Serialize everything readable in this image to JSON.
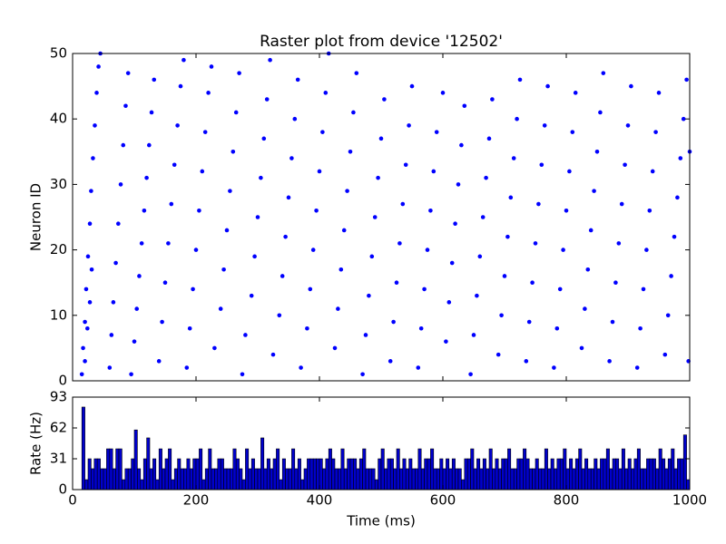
{
  "chart_data": [
    {
      "type": "scatter",
      "title": "Raster plot from device '12502'",
      "ylabel": "Neuron ID",
      "color": "#0000ff",
      "xlim": [
        0,
        1000
      ],
      "ylim": [
        0,
        50
      ],
      "yticks": [
        0,
        10,
        20,
        30,
        40,
        50
      ],
      "x": [
        15,
        17,
        20,
        22,
        25,
        28,
        30,
        33,
        36,
        39,
        42,
        45,
        20,
        24,
        28,
        31,
        60,
        63,
        66,
        70,
        74,
        78,
        82,
        86,
        90,
        95,
        100,
        104,
        108,
        112,
        116,
        120,
        124,
        128,
        132,
        140,
        145,
        150,
        155,
        160,
        165,
        170,
        175,
        180,
        185,
        190,
        195,
        200,
        205,
        210,
        215,
        220,
        225,
        230,
        240,
        245,
        250,
        255,
        260,
        265,
        270,
        275,
        280,
        290,
        295,
        300,
        305,
        310,
        315,
        320,
        325,
        335,
        340,
        345,
        350,
        355,
        360,
        365,
        370,
        380,
        385,
        390,
        395,
        400,
        405,
        410,
        415,
        425,
        430,
        435,
        440,
        445,
        450,
        455,
        460,
        470,
        475,
        480,
        485,
        490,
        495,
        500,
        505,
        515,
        520,
        525,
        530,
        535,
        540,
        545,
        550,
        560,
        565,
        570,
        575,
        580,
        585,
        590,
        600,
        605,
        610,
        615,
        620,
        625,
        630,
        635,
        645,
        650,
        655,
        660,
        665,
        670,
        675,
        680,
        690,
        695,
        700,
        705,
        710,
        715,
        720,
        725,
        735,
        740,
        745,
        750,
        755,
        760,
        765,
        770,
        780,
        785,
        790,
        795,
        800,
        805,
        810,
        815,
        825,
        830,
        835,
        840,
        845,
        850,
        855,
        860,
        870,
        875,
        880,
        885,
        890,
        895,
        900,
        905,
        915,
        920,
        925,
        930,
        935,
        940,
        945,
        950,
        960,
        965,
        970,
        975,
        980,
        985,
        990,
        995,
        998,
        1000
      ],
      "y": [
        1,
        5,
        9,
        14,
        19,
        24,
        29,
        34,
        39,
        44,
        48,
        50,
        3,
        8,
        12,
        17,
        2,
        7,
        12,
        18,
        24,
        30,
        36,
        42,
        47,
        1,
        6,
        11,
        16,
        21,
        26,
        31,
        36,
        41,
        46,
        3,
        9,
        15,
        21,
        27,
        33,
        39,
        45,
        49,
        2,
        8,
        14,
        20,
        26,
        32,
        38,
        44,
        48,
        5,
        11,
        17,
        23,
        29,
        35,
        41,
        47,
        1,
        7,
        13,
        19,
        25,
        31,
        37,
        43,
        49,
        4,
        10,
        16,
        22,
        28,
        34,
        40,
        46,
        2,
        8,
        14,
        20,
        26,
        32,
        38,
        44,
        50,
        5,
        11,
        17,
        23,
        29,
        35,
        41,
        47,
        1,
        7,
        13,
        19,
        25,
        31,
        37,
        43,
        3,
        9,
        15,
        21,
        27,
        33,
        39,
        45,
        2,
        8,
        14,
        20,
        26,
        32,
        38,
        44,
        6,
        12,
        18,
        24,
        30,
        36,
        42,
        1,
        7,
        13,
        19,
        25,
        31,
        37,
        43,
        4,
        10,
        16,
        22,
        28,
        34,
        40,
        46,
        3,
        9,
        15,
        21,
        27,
        33,
        39,
        45,
        2,
        8,
        14,
        20,
        26,
        32,
        38,
        44,
        5,
        11,
        17,
        23,
        29,
        35,
        41,
        47,
        3,
        9,
        15,
        21,
        27,
        33,
        39,
        45,
        2,
        8,
        14,
        20,
        26,
        32,
        38,
        44,
        4,
        10,
        16,
        22,
        28,
        34,
        40,
        46,
        3,
        35
      ]
    },
    {
      "type": "histogram",
      "xlabel": "Time (ms)",
      "ylabel": "Rate (Hz)",
      "color": "#0000cc",
      "xlim": [
        0,
        1000
      ],
      "xticks": [
        0,
        200,
        400,
        600,
        800,
        1000
      ],
      "ylim": [
        0,
        93
      ],
      "yticks": [
        0,
        31,
        62,
        93
      ],
      "bins": [
        0,
        5,
        10,
        15,
        20,
        25,
        30,
        35,
        40,
        45,
        50,
        55,
        60,
        65,
        70,
        75,
        80,
        85,
        90,
        95,
        100,
        105,
        110,
        115,
        120,
        125,
        130,
        135,
        140,
        145,
        150,
        155,
        160,
        165,
        170,
        175,
        180,
        185,
        190,
        195,
        200,
        205,
        210,
        215,
        220,
        225,
        230,
        235,
        240,
        245,
        250,
        255,
        260,
        265,
        270,
        275,
        280,
        285,
        290,
        295,
        300,
        305,
        310,
        315,
        320,
        325,
        330,
        335,
        340,
        345,
        350,
        355,
        360,
        365,
        370,
        375,
        380,
        385,
        390,
        395,
        400,
        405,
        410,
        415,
        420,
        425,
        430,
        435,
        440,
        445,
        450,
        455,
        460,
        465,
        470,
        475,
        480,
        485,
        490,
        495,
        500,
        505,
        510,
        515,
        520,
        525,
        530,
        535,
        540,
        545,
        550,
        555,
        560,
        565,
        570,
        575,
        580,
        585,
        590,
        595,
        600,
        605,
        610,
        615,
        620,
        625,
        630,
        635,
        640,
        645,
        650,
        655,
        660,
        665,
        670,
        675,
        680,
        685,
        690,
        695,
        700,
        705,
        710,
        715,
        720,
        725,
        730,
        735,
        740,
        745,
        750,
        755,
        760,
        765,
        770,
        775,
        780,
        785,
        790,
        795,
        800,
        805,
        810,
        815,
        820,
        825,
        830,
        835,
        840,
        845,
        850,
        855,
        860,
        865,
        870,
        875,
        880,
        885,
        890,
        895,
        900,
        905,
        910,
        915,
        920,
        925,
        930,
        935,
        940,
        945,
        950,
        955,
        960,
        965,
        970,
        975,
        980,
        985,
        990,
        995,
        1000
      ],
      "values": [
        0,
        0,
        0,
        83,
        10,
        31,
        21,
        31,
        31,
        21,
        21,
        41,
        41,
        21,
        41,
        41,
        10,
        21,
        21,
        31,
        60,
        21,
        10,
        31,
        52,
        21,
        31,
        10,
        41,
        21,
        31,
        41,
        10,
        21,
        31,
        21,
        21,
        31,
        21,
        31,
        31,
        41,
        10,
        21,
        41,
        21,
        21,
        31,
        31,
        21,
        21,
        21,
        41,
        31,
        21,
        10,
        41,
        21,
        31,
        21,
        21,
        52,
        21,
        31,
        21,
        31,
        41,
        10,
        31,
        21,
        21,
        41,
        21,
        31,
        10,
        21,
        31,
        31,
        31,
        31,
        31,
        21,
        31,
        41,
        31,
        21,
        21,
        41,
        21,
        31,
        31,
        31,
        21,
        31,
        41,
        21,
        21,
        21,
        10,
        31,
        41,
        21,
        31,
        31,
        21,
        41,
        21,
        31,
        21,
        31,
        21,
        21,
        41,
        21,
        31,
        31,
        41,
        21,
        21,
        31,
        21,
        31,
        21,
        31,
        21,
        21,
        10,
        31,
        31,
        41,
        21,
        31,
        21,
        31,
        21,
        41,
        21,
        31,
        21,
        31,
        31,
        41,
        21,
        21,
        31,
        31,
        41,
        31,
        21,
        21,
        31,
        21,
        21,
        41,
        21,
        31,
        21,
        31,
        31,
        41,
        21,
        31,
        21,
        31,
        41,
        21,
        31,
        21,
        21,
        31,
        21,
        31,
        31,
        41,
        21,
        31,
        31,
        21,
        41,
        21,
        31,
        21,
        31,
        41,
        21,
        21,
        31,
        31,
        31,
        21,
        41,
        31,
        21,
        31,
        41,
        21,
        31,
        31,
        55,
        10
      ]
    }
  ]
}
